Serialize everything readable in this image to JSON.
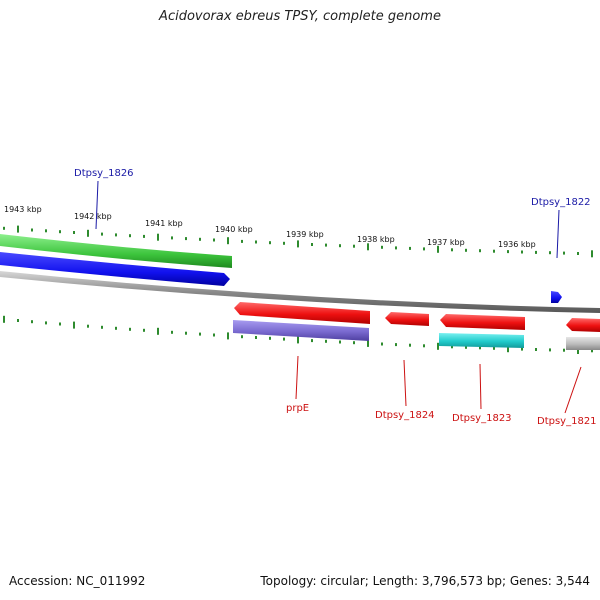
{
  "title": "Acidovorax ebreus TPSY, complete genome",
  "footer": {
    "accession": "Accession: NC_011992",
    "topology": "Topology: circular; Length: 3,796,573 bp; Genes: 3,544"
  },
  "scale_labels": [
    "1943 kbp",
    "1942 kbp",
    "1941 kbp",
    "1940 kbp",
    "1939 kbp",
    "1938 kbp",
    "1937 kbp",
    "1936 kbp"
  ],
  "colors": {
    "tick": "#2e8b2e",
    "backbone": "#8a8a8a",
    "forward_label": "#1a1aa6",
    "reverse_label": "#cc1111",
    "green_gene": "#44cc44",
    "blue_gene": "#1111ee",
    "red_gene": "#ee1111",
    "purple_gene": "#7a6ad0",
    "cyan_gene": "#22cccc",
    "gray_gene": "#bbbbbb"
  },
  "genes": [
    {
      "label": "Dtpsy_1826",
      "strand": "forward"
    },
    {
      "label": "Dtpsy_1822",
      "strand": "forward"
    },
    {
      "label": "prpE",
      "strand": "reverse"
    },
    {
      "label": "Dtpsy_1824",
      "strand": "reverse"
    },
    {
      "label": "Dtpsy_1823",
      "strand": "reverse"
    },
    {
      "label": "Dtpsy_1821",
      "strand": "reverse"
    }
  ]
}
